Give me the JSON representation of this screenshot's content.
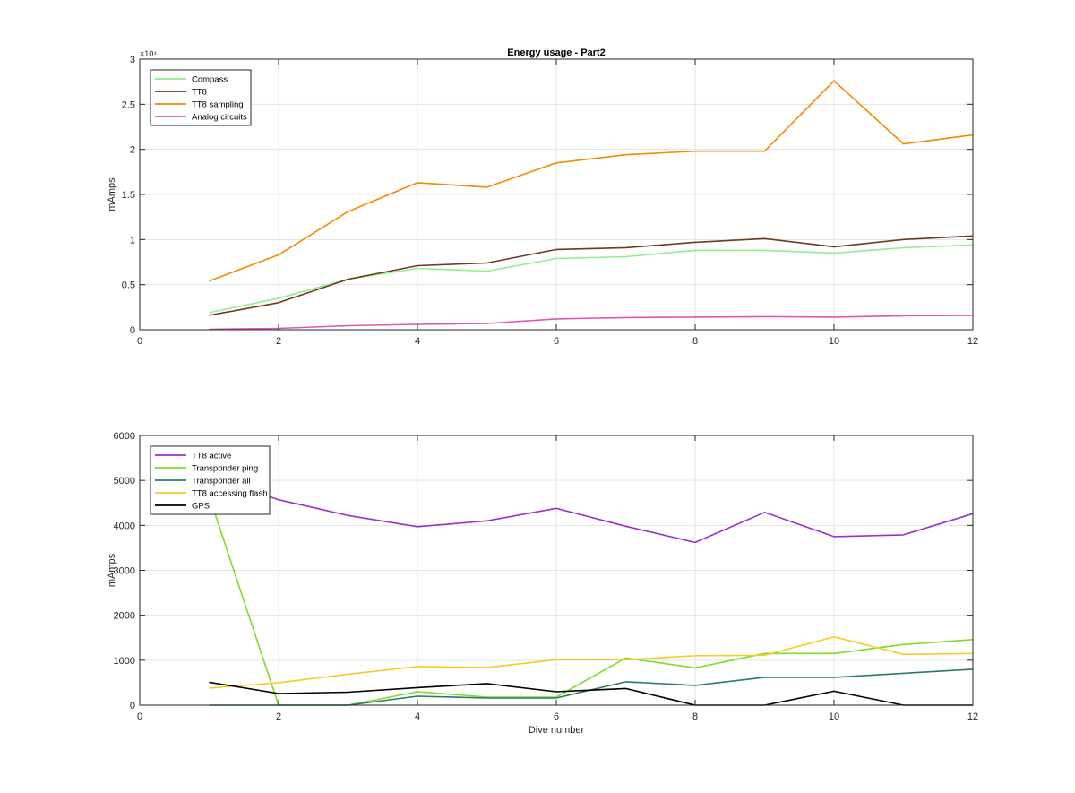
{
  "chart_data": [
    {
      "type": "line",
      "title": "Energy usage - Part2",
      "xlabel": "",
      "ylabel": "mAmps",
      "xlim": [
        0,
        12
      ],
      "ylim": [
        0,
        30000
      ],
      "y_exponent_label": "×10⁴",
      "x_ticks": [
        0,
        2,
        4,
        6,
        8,
        10,
        12
      ],
      "y_ticks": [
        0,
        5000,
        10000,
        15000,
        20000,
        25000,
        30000
      ],
      "y_tick_labels": [
        "0",
        "0.5",
        "1",
        "1.5",
        "2",
        "2.5",
        "3"
      ],
      "grid": true,
      "legend_position": "top-left",
      "x": [
        1,
        2,
        3,
        4,
        5,
        6,
        7,
        8,
        9,
        10,
        11,
        12
      ],
      "series": [
        {
          "name": "Compass",
          "color": "#90ee90",
          "values": [
            1900,
            3500,
            5600,
            6800,
            6500,
            7900,
            8100,
            8800,
            8800,
            8500,
            9100,
            9400
          ]
        },
        {
          "name": "TT8",
          "color": "#6b3a1f",
          "values": [
            1600,
            3000,
            5600,
            7100,
            7400,
            8900,
            9100,
            9700,
            10100,
            9200,
            10000,
            10400
          ]
        },
        {
          "name": "TT8 sampling",
          "color": "#f08c00",
          "values": [
            5400,
            8300,
            13100,
            16300,
            15800,
            18500,
            19400,
            19800,
            19800,
            27600,
            20600,
            21600
          ]
        },
        {
          "name": "Analog circuits",
          "color": "#e055b0",
          "values": [
            50,
            150,
            450,
            600,
            700,
            1200,
            1350,
            1400,
            1450,
            1400,
            1550,
            1600
          ]
        }
      ]
    },
    {
      "type": "line",
      "title": "",
      "xlabel": "Dive number",
      "ylabel": "mAmps",
      "xlim": [
        0,
        12
      ],
      "ylim": [
        0,
        6000
      ],
      "x_ticks": [
        0,
        2,
        4,
        6,
        8,
        10,
        12
      ],
      "y_ticks": [
        0,
        1000,
        2000,
        3000,
        4000,
        5000,
        6000
      ],
      "y_tick_labels": [
        "0",
        "1000",
        "2000",
        "3000",
        "4000",
        "5000",
        "6000"
      ],
      "grid": true,
      "legend_position": "top-left",
      "x": [
        1,
        2,
        3,
        4,
        5,
        6,
        7,
        8,
        9,
        10,
        11,
        12
      ],
      "series": [
        {
          "name": "TT8 active",
          "color": "#9b30c8",
          "values": [
            5100,
            4570,
            4220,
            3970,
            4100,
            4380,
            3980,
            3620,
            4290,
            3750,
            3790,
            4260
          ]
        },
        {
          "name": "Transponder ping",
          "color": "#7cdc28",
          "values": [
            4650,
            0,
            0,
            300,
            180,
            180,
            1050,
            830,
            1150,
            1150,
            1350,
            1460
          ]
        },
        {
          "name": "Transponder all",
          "color": "#2a7a6a",
          "values": [
            0,
            0,
            0,
            200,
            160,
            160,
            520,
            440,
            620,
            620,
            710,
            800
          ]
        },
        {
          "name": "TT8 accessing flash",
          "color": "#f5cd28",
          "values": [
            380,
            500,
            690,
            860,
            840,
            1010,
            1010,
            1100,
            1110,
            1520,
            1130,
            1150
          ]
        },
        {
          "name": "GPS",
          "color": "#000000",
          "values": [
            510,
            260,
            290,
            390,
            480,
            300,
            370,
            0,
            0,
            310,
            0,
            0
          ]
        }
      ]
    }
  ]
}
